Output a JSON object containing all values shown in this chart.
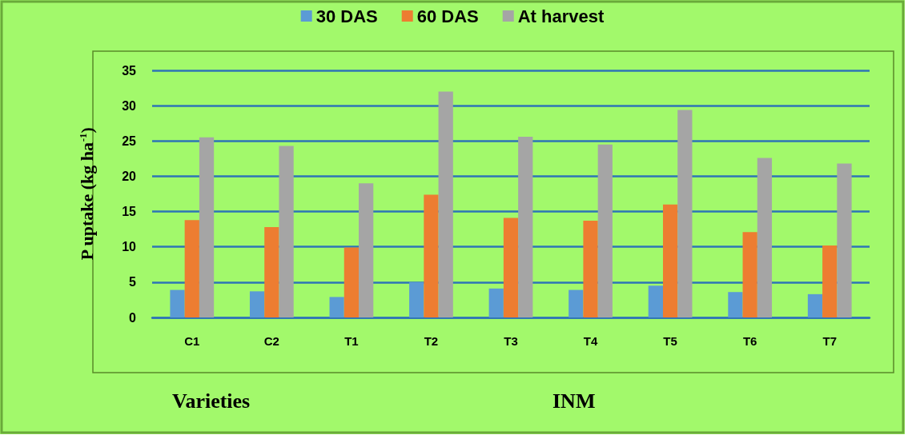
{
  "chart_data": {
    "type": "bar",
    "ylabel": "P uptake (kg ha$^{-1}$)",
    "categories": [
      "C1",
      "C2",
      "T1",
      "T2",
      "T3",
      "T4",
      "T5",
      "T6",
      "T7"
    ],
    "series": [
      {
        "name": "30 DAS",
        "color": "#5b9bd5",
        "values": [
          3.9,
          3.7,
          2.9,
          5.0,
          4.1,
          3.9,
          4.5,
          3.6,
          3.3
        ]
      },
      {
        "name": "60 DAS",
        "color": "#ed7d31",
        "values": [
          13.8,
          12.8,
          9.9,
          17.4,
          14.1,
          13.7,
          16.0,
          12.1,
          10.2
        ]
      },
      {
        "name": "At harvest",
        "color": "#a5a5a5",
        "values": [
          25.5,
          24.3,
          19.0,
          32.0,
          25.6,
          24.5,
          29.4,
          22.6,
          21.8
        ]
      }
    ],
    "ylim": [
      0,
      35
    ],
    "yticks": [
      0,
      5,
      10,
      15,
      20,
      25,
      30,
      35
    ],
    "grid": "y",
    "legend": "top",
    "annotations": [
      "Varieties",
      "INM"
    ]
  }
}
